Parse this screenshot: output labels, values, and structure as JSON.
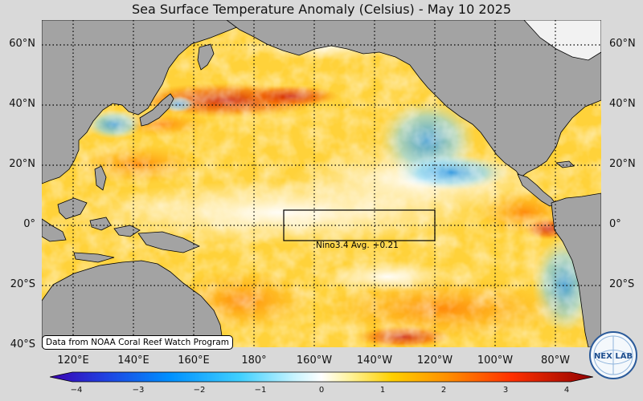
{
  "title": "Sea Surface Temperature Anomaly (Celsius) - May 10 2025",
  "latitudes": [
    "60°N",
    "40°N",
    "20°N",
    "0°",
    "20°S",
    "40°S"
  ],
  "longitudes": [
    "120°E",
    "140°E",
    "160°E",
    "180°",
    "160°W",
    "140°W",
    "120°W",
    "100°W",
    "80°W"
  ],
  "nino_box": {
    "name": "Nino3.4 Avg.",
    "value": "+0.21",
    "lon_range": [
      -170,
      -120
    ],
    "lat_range": [
      -5,
      5
    ]
  },
  "credit": "Data from NOAA Coral Reef Watch Program",
  "logo_text": "NEX LAB",
  "colorbar": {
    "ticks": [
      "−4",
      "−3",
      "−2",
      "−1",
      "0",
      "1",
      "2",
      "3",
      "4"
    ],
    "min": -4,
    "max": 4
  },
  "colors": {
    "land": "#a3a3a3",
    "background": "#d9d9d9",
    "warm": "#ffb000",
    "hot": "#cc1100",
    "cool": "#3fb8ff",
    "neutral": "#ffffff"
  }
}
